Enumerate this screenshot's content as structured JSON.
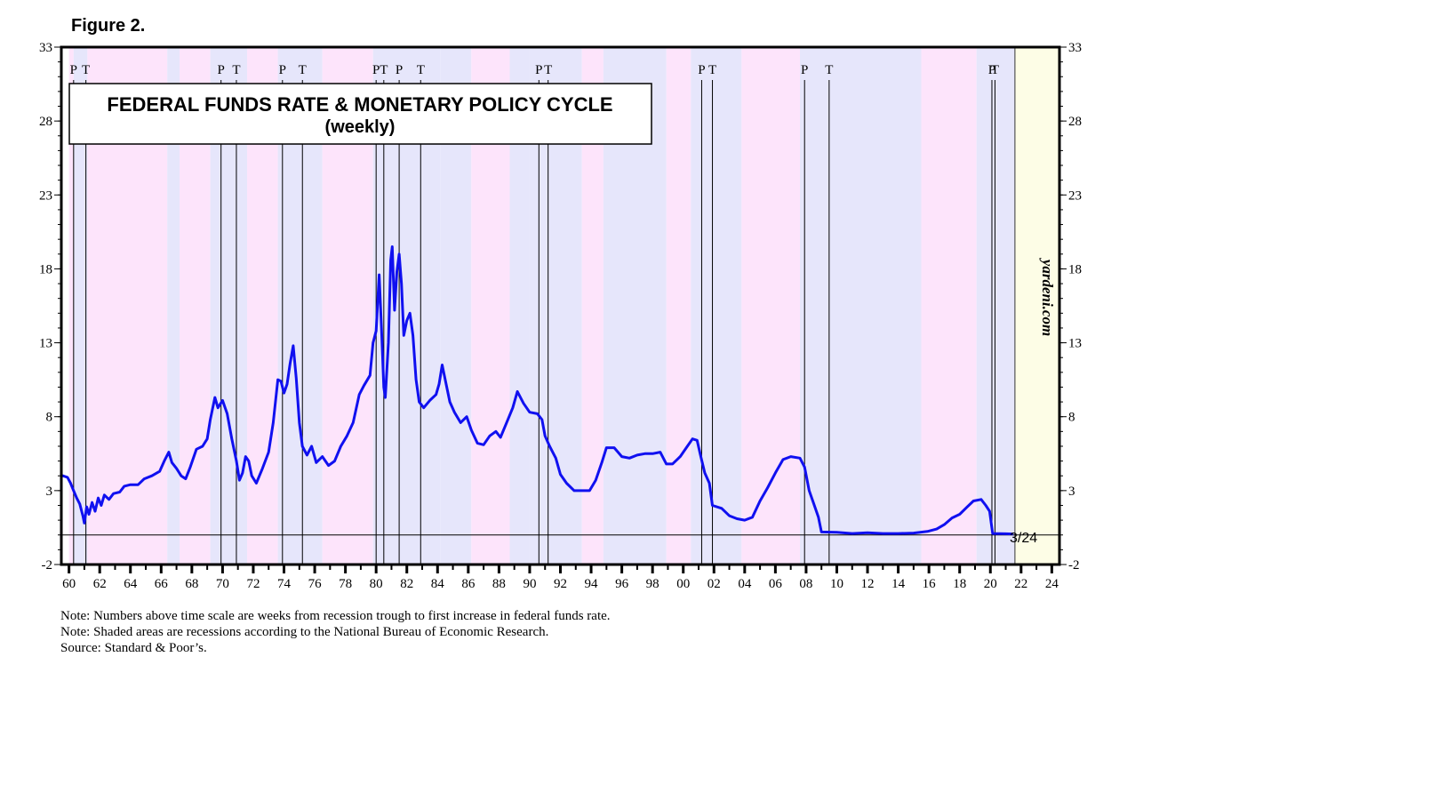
{
  "figure_label": "Figure 2.",
  "chart_data": {
    "type": "line",
    "title": "FEDERAL FUNDS RATE & MONETARY POLICY CYCLE",
    "subtitle": "(weekly)",
    "watermark": "yardeni.com",
    "latest_label": "3/24",
    "xlabel": "",
    "ylabel": "",
    "xlim": [
      1959.5,
      2024.5
    ],
    "ylim": [
      -2,
      33
    ],
    "y_ticks": [
      -2,
      3,
      8,
      13,
      18,
      23,
      28,
      33
    ],
    "x_tick_labels": [
      "60",
      "62",
      "64",
      "66",
      "68",
      "70",
      "72",
      "74",
      "76",
      "78",
      "80",
      "82",
      "84",
      "86",
      "88",
      "90",
      "92",
      "94",
      "96",
      "98",
      "00",
      "02",
      "04",
      "06",
      "08",
      "10",
      "12",
      "14",
      "16",
      "18",
      "20",
      "22",
      "24"
    ],
    "x_tick_years": [
      1960,
      1962,
      1964,
      1966,
      1968,
      1970,
      1972,
      1974,
      1976,
      1978,
      1980,
      1982,
      1984,
      1986,
      1988,
      1990,
      1992,
      1994,
      1996,
      1998,
      2000,
      2002,
      2004,
      2006,
      2008,
      2010,
      2012,
      2014,
      2016,
      2018,
      2020,
      2022,
      2024
    ],
    "zero_line": 0,
    "forecast_region": [
      2021.6,
      2024.5
    ],
    "cycle_bands": [
      {
        "start": 1960.0,
        "end": 1960.3,
        "phase": "tightening"
      },
      {
        "start": 1960.3,
        "end": 1961.2,
        "phase": "easing"
      },
      {
        "start": 1961.2,
        "end": 1966.4,
        "phase": "tightening"
      },
      {
        "start": 1966.4,
        "end": 1967.2,
        "phase": "easing"
      },
      {
        "start": 1967.2,
        "end": 1969.2,
        "phase": "tightening"
      },
      {
        "start": 1969.2,
        "end": 1971.6,
        "phase": "easing"
      },
      {
        "start": 1971.6,
        "end": 1973.6,
        "phase": "tightening"
      },
      {
        "start": 1973.6,
        "end": 1976.5,
        "phase": "easing"
      },
      {
        "start": 1976.5,
        "end": 1979.8,
        "phase": "tightening"
      },
      {
        "start": 1979.8,
        "end": 1984.2,
        "phase": "easing"
      },
      {
        "start": 1984.2,
        "end": 1986.2,
        "phase": "easing"
      },
      {
        "start": 1986.2,
        "end": 1988.7,
        "phase": "tightening"
      },
      {
        "start": 1988.7,
        "end": 1990.0,
        "phase": "easing"
      },
      {
        "start": 1990.0,
        "end": 1993.4,
        "phase": "easing"
      },
      {
        "start": 1993.4,
        "end": 1994.8,
        "phase": "tightening"
      },
      {
        "start": 1994.8,
        "end": 1998.9,
        "phase": "easing"
      },
      {
        "start": 1998.9,
        "end": 2000.5,
        "phase": "tightening"
      },
      {
        "start": 2000.5,
        "end": 2003.8,
        "phase": "easing"
      },
      {
        "start": 2003.8,
        "end": 2007.6,
        "phase": "tightening"
      },
      {
        "start": 2007.6,
        "end": 2015.5,
        "phase": "easing"
      },
      {
        "start": 2015.5,
        "end": 2019.1,
        "phase": "tightening"
      },
      {
        "start": 2019.1,
        "end": 2021.6,
        "phase": "easing"
      }
    ],
    "recession_markers": [
      {
        "label": "P",
        "year": 1960.3
      },
      {
        "label": "T",
        "year": 1961.1
      },
      {
        "label": "P",
        "year": 1969.9
      },
      {
        "label": "T",
        "year": 1970.9
      },
      {
        "label": "P",
        "year": 1973.9
      },
      {
        "label": "T",
        "year": 1975.2
      },
      {
        "label": "P",
        "year": 1980.0
      },
      {
        "label": "T",
        "year": 1980.5
      },
      {
        "label": "P",
        "year": 1981.5
      },
      {
        "label": "T",
        "year": 1982.9
      },
      {
        "label": "P",
        "year": 1990.6
      },
      {
        "label": "T",
        "year": 1991.2
      },
      {
        "label": "P",
        "year": 2001.2
      },
      {
        "label": "T",
        "year": 2001.9
      },
      {
        "label": "P",
        "year": 2007.9
      },
      {
        "label": "T",
        "year": 2009.5
      },
      {
        "label": "P",
        "year": 2020.1
      },
      {
        "label": "T",
        "year": 2020.3
      }
    ],
    "series": [
      {
        "name": "Federal Funds Rate",
        "color": "#1010f0",
        "points": [
          [
            1959.6,
            4.0
          ],
          [
            1959.9,
            3.9
          ],
          [
            1960.1,
            3.5
          ],
          [
            1960.3,
            3.0
          ],
          [
            1960.5,
            2.5
          ],
          [
            1960.7,
            2.1
          ],
          [
            1960.9,
            1.3
          ],
          [
            1961.0,
            0.8
          ],
          [
            1961.15,
            1.9
          ],
          [
            1961.3,
            1.4
          ],
          [
            1961.5,
            2.2
          ],
          [
            1961.7,
            1.6
          ],
          [
            1961.9,
            2.5
          ],
          [
            1962.1,
            2.0
          ],
          [
            1962.3,
            2.7
          ],
          [
            1962.6,
            2.4
          ],
          [
            1962.9,
            2.8
          ],
          [
            1963.3,
            2.9
          ],
          [
            1963.6,
            3.3
          ],
          [
            1964.0,
            3.4
          ],
          [
            1964.5,
            3.4
          ],
          [
            1964.9,
            3.8
          ],
          [
            1965.4,
            4.0
          ],
          [
            1965.9,
            4.3
          ],
          [
            1966.2,
            5.0
          ],
          [
            1966.5,
            5.6
          ],
          [
            1966.7,
            4.9
          ],
          [
            1967.0,
            4.5
          ],
          [
            1967.3,
            4.0
          ],
          [
            1967.6,
            3.8
          ],
          [
            1967.9,
            4.6
          ],
          [
            1968.3,
            5.8
          ],
          [
            1968.7,
            6.0
          ],
          [
            1969.0,
            6.5
          ],
          [
            1969.2,
            7.8
          ],
          [
            1969.5,
            9.3
          ],
          [
            1969.7,
            8.6
          ],
          [
            1970.0,
            9.1
          ],
          [
            1970.3,
            8.2
          ],
          [
            1970.6,
            6.5
          ],
          [
            1970.9,
            5.0
          ],
          [
            1971.1,
            3.7
          ],
          [
            1971.3,
            4.2
          ],
          [
            1971.5,
            5.3
          ],
          [
            1971.7,
            5.0
          ],
          [
            1971.9,
            4.0
          ],
          [
            1972.2,
            3.5
          ],
          [
            1972.6,
            4.5
          ],
          [
            1973.0,
            5.6
          ],
          [
            1973.3,
            7.6
          ],
          [
            1973.6,
            10.5
          ],
          [
            1973.8,
            10.4
          ],
          [
            1974.0,
            9.6
          ],
          [
            1974.2,
            10.2
          ],
          [
            1974.4,
            11.6
          ],
          [
            1974.6,
            12.8
          ],
          [
            1974.8,
            10.6
          ],
          [
            1975.0,
            7.6
          ],
          [
            1975.2,
            6.0
          ],
          [
            1975.5,
            5.4
          ],
          [
            1975.8,
            6.0
          ],
          [
            1976.1,
            4.9
          ],
          [
            1976.5,
            5.3
          ],
          [
            1976.9,
            4.7
          ],
          [
            1977.3,
            5.0
          ],
          [
            1977.7,
            6.0
          ],
          [
            1978.1,
            6.7
          ],
          [
            1978.5,
            7.6
          ],
          [
            1978.9,
            9.5
          ],
          [
            1979.2,
            10.1
          ],
          [
            1979.6,
            10.8
          ],
          [
            1979.8,
            13.0
          ],
          [
            1980.0,
            13.8
          ],
          [
            1980.2,
            17.6
          ],
          [
            1980.35,
            14.0
          ],
          [
            1980.5,
            10.0
          ],
          [
            1980.6,
            9.3
          ],
          [
            1980.8,
            13.0
          ],
          [
            1980.95,
            18.6
          ],
          [
            1981.05,
            19.5
          ],
          [
            1981.2,
            15.2
          ],
          [
            1981.35,
            17.8
          ],
          [
            1981.5,
            19.0
          ],
          [
            1981.65,
            17.0
          ],
          [
            1981.8,
            13.5
          ],
          [
            1982.0,
            14.5
          ],
          [
            1982.2,
            15.0
          ],
          [
            1982.4,
            13.5
          ],
          [
            1982.6,
            10.5
          ],
          [
            1982.8,
            9.0
          ],
          [
            1983.1,
            8.6
          ],
          [
            1983.5,
            9.1
          ],
          [
            1983.9,
            9.5
          ],
          [
            1984.1,
            10.2
          ],
          [
            1984.3,
            11.5
          ],
          [
            1984.5,
            10.5
          ],
          [
            1984.8,
            9.0
          ],
          [
            1985.1,
            8.3
          ],
          [
            1985.5,
            7.6
          ],
          [
            1985.9,
            8.0
          ],
          [
            1986.2,
            7.1
          ],
          [
            1986.6,
            6.2
          ],
          [
            1987.0,
            6.1
          ],
          [
            1987.4,
            6.7
          ],
          [
            1987.8,
            7.0
          ],
          [
            1988.1,
            6.6
          ],
          [
            1988.5,
            7.6
          ],
          [
            1988.9,
            8.6
          ],
          [
            1989.2,
            9.7
          ],
          [
            1989.6,
            8.9
          ],
          [
            1990.0,
            8.3
          ],
          [
            1990.5,
            8.2
          ],
          [
            1990.8,
            7.8
          ],
          [
            1991.0,
            6.7
          ],
          [
            1991.3,
            6.0
          ],
          [
            1991.7,
            5.2
          ],
          [
            1992.0,
            4.1
          ],
          [
            1992.4,
            3.5
          ],
          [
            1992.9,
            3.0
          ],
          [
            1993.4,
            3.0
          ],
          [
            1993.9,
            3.0
          ],
          [
            1994.3,
            3.7
          ],
          [
            1994.7,
            4.9
          ],
          [
            1995.0,
            5.9
          ],
          [
            1995.5,
            5.9
          ],
          [
            1996.0,
            5.3
          ],
          [
            1996.5,
            5.2
          ],
          [
            1997.0,
            5.4
          ],
          [
            1997.5,
            5.5
          ],
          [
            1998.0,
            5.5
          ],
          [
            1998.5,
            5.6
          ],
          [
            1998.9,
            4.8
          ],
          [
            1999.3,
            4.8
          ],
          [
            1999.8,
            5.3
          ],
          [
            2000.2,
            5.9
          ],
          [
            2000.6,
            6.5
          ],
          [
            2000.9,
            6.4
          ],
          [
            2001.1,
            5.5
          ],
          [
            2001.4,
            4.2
          ],
          [
            2001.7,
            3.5
          ],
          [
            2001.9,
            2.0
          ],
          [
            2002.5,
            1.8
          ],
          [
            2003.0,
            1.3
          ],
          [
            2003.5,
            1.1
          ],
          [
            2004.0,
            1.0
          ],
          [
            2004.5,
            1.2
          ],
          [
            2005.0,
            2.3
          ],
          [
            2005.5,
            3.2
          ],
          [
            2006.0,
            4.2
          ],
          [
            2006.5,
            5.1
          ],
          [
            2007.0,
            5.3
          ],
          [
            2007.6,
            5.2
          ],
          [
            2007.9,
            4.6
          ],
          [
            2008.2,
            3.0
          ],
          [
            2008.5,
            2.1
          ],
          [
            2008.8,
            1.2
          ],
          [
            2009.0,
            0.2
          ],
          [
            2010.0,
            0.18
          ],
          [
            2011.0,
            0.1
          ],
          [
            2012.0,
            0.15
          ],
          [
            2013.0,
            0.1
          ],
          [
            2014.0,
            0.1
          ],
          [
            2015.0,
            0.13
          ],
          [
            2015.9,
            0.24
          ],
          [
            2016.5,
            0.4
          ],
          [
            2017.0,
            0.7
          ],
          [
            2017.5,
            1.15
          ],
          [
            2018.0,
            1.4
          ],
          [
            2018.5,
            1.9
          ],
          [
            2018.9,
            2.3
          ],
          [
            2019.4,
            2.4
          ],
          [
            2019.7,
            2.0
          ],
          [
            2019.95,
            1.6
          ],
          [
            2020.15,
            0.1
          ],
          [
            2021.0,
            0.08
          ],
          [
            2021.4,
            0.07
          ]
        ]
      }
    ]
  },
  "notes": [
    "Note: Numbers above time scale are weeks from recession trough to first increase in federal funds rate.",
    "Note: Shaded areas are recessions according to the National Bureau of Economic Research.",
    "Source: Standard & Poor’s."
  ],
  "colors": {
    "tightening_band": "#fde4fb",
    "easing_band": "#e6e6fb",
    "forecast_band": "#fdfde6",
    "series_line": "#1010f0"
  }
}
